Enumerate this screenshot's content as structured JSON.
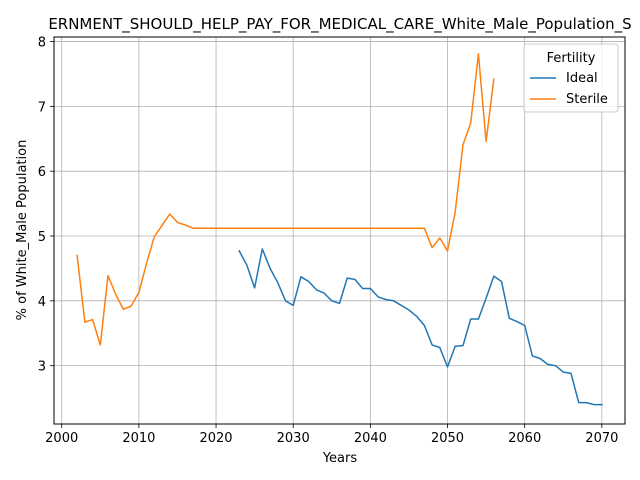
{
  "chart_data": {
    "type": "line",
    "title": "ERNMENT_SHOULD_HELP_PAY_FOR_MEDICAL_CARE_White_Male_Population_S",
    "xlabel": "Years",
    "ylabel": "% of White_Male Population",
    "xlim": [
      1999,
      2073
    ],
    "ylim": [
      2.1,
      8.07
    ],
    "xticks": [
      2000,
      2010,
      2020,
      2030,
      2040,
      2050,
      2060,
      2070
    ],
    "yticks": [
      3,
      4,
      5,
      6,
      7,
      8
    ],
    "grid": true,
    "legend": {
      "title": "Fertility",
      "placement": "top-right"
    },
    "series": [
      {
        "name": "Ideal",
        "color": "#1f77b4",
        "x": [
          2023,
          2024,
          2025,
          2026,
          2027,
          2028,
          2029,
          2030,
          2031,
          2032,
          2033,
          2034,
          2035,
          2036,
          2037,
          2038,
          2039,
          2040,
          2041,
          2042,
          2043,
          2044,
          2045,
          2046,
          2047,
          2048,
          2049,
          2050,
          2051,
          2052,
          2053,
          2054,
          2055,
          2056,
          2057,
          2058,
          2059,
          2060,
          2061,
          2062,
          2063,
          2064,
          2065,
          2066,
          2067,
          2068,
          2069,
          2070
        ],
        "y": [
          4.77,
          4.55,
          4.2,
          4.8,
          4.5,
          4.28,
          4.0,
          3.93,
          4.37,
          4.3,
          4.17,
          4.12,
          4.0,
          3.96,
          4.35,
          4.33,
          4.19,
          4.19,
          4.06,
          4.02,
          4.0,
          3.93,
          3.86,
          3.76,
          3.62,
          3.32,
          3.28,
          2.98,
          3.3,
          3.31,
          3.72,
          3.72,
          4.04,
          4.38,
          4.3,
          3.73,
          3.68,
          3.62,
          3.15,
          3.11,
          3.02,
          3.0,
          2.9,
          2.88,
          2.43,
          2.43,
          2.4,
          2.4
        ]
      },
      {
        "name": "Sterile",
        "color": "#ff7f0e",
        "x": [
          2002,
          2003,
          2004,
          2005,
          2006,
          2007,
          2008,
          2009,
          2010,
          2011,
          2012,
          2013,
          2014,
          2015,
          2016,
          2017,
          2018,
          2019,
          2020,
          2025,
          2030,
          2035,
          2040,
          2045,
          2047,
          2048,
          2049,
          2050,
          2051,
          2052,
          2053,
          2054,
          2055,
          2056
        ],
        "y": [
          4.7,
          3.67,
          3.71,
          3.32,
          4.39,
          4.1,
          3.87,
          3.92,
          4.13,
          4.58,
          4.99,
          5.16,
          5.34,
          5.21,
          5.17,
          5.12,
          5.12,
          5.12,
          5.12,
          5.12,
          5.12,
          5.12,
          5.12,
          5.12,
          5.12,
          4.82,
          4.97,
          4.77,
          5.37,
          6.41,
          6.74,
          7.81,
          6.46,
          7.42
        ]
      }
    ]
  }
}
